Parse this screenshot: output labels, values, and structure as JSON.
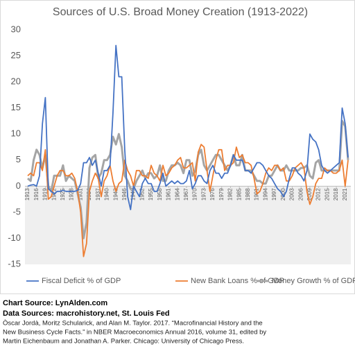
{
  "chart_data": {
    "type": "line",
    "title": "Sources of U.S. Broad Money Creation (1913-2022)",
    "x": [
      1913,
      1914,
      1915,
      1916,
      1917,
      1918,
      1919,
      1920,
      1921,
      1922,
      1923,
      1924,
      1925,
      1926,
      1927,
      1928,
      1929,
      1930,
      1931,
      1932,
      1933,
      1934,
      1935,
      1936,
      1937,
      1938,
      1939,
      1940,
      1941,
      1942,
      1943,
      1944,
      1945,
      1946,
      1947,
      1948,
      1949,
      1950,
      1951,
      1952,
      1953,
      1954,
      1955,
      1956,
      1957,
      1958,
      1959,
      1960,
      1961,
      1962,
      1963,
      1964,
      1965,
      1966,
      1967,
      1968,
      1969,
      1970,
      1971,
      1972,
      1973,
      1974,
      1975,
      1976,
      1977,
      1978,
      1979,
      1980,
      1981,
      1982,
      1983,
      1984,
      1985,
      1986,
      1987,
      1988,
      1989,
      1990,
      1991,
      1992,
      1993,
      1994,
      1995,
      1996,
      1997,
      1998,
      1999,
      2000,
      2001,
      2002,
      2003,
      2004,
      2005,
      2006,
      2007,
      2008,
      2009,
      2010,
      2011,
      2012,
      2013,
      2014,
      2015,
      2016,
      2017,
      2018,
      2019,
      2020,
      2021,
      2022
    ],
    "series": [
      {
        "name": "Fiscal Deficit % of GDP",
        "color": "#4472c4",
        "width": 1.8,
        "values": [
          0,
          0.2,
          0.3,
          0,
          2,
          12,
          17,
          -0.5,
          -1,
          -1.5,
          -1,
          -1,
          -0.8,
          -1,
          -1,
          -1,
          -1,
          -0.8,
          0.5,
          4.5,
          4.5,
          5.5,
          4,
          5,
          2.5,
          0,
          3,
          3,
          4,
          14,
          27,
          21,
          21,
          7,
          -2,
          -4.5,
          0,
          -1,
          -2,
          0.5,
          1.5,
          0.5,
          0.5,
          -1,
          -1,
          0.5,
          2.5,
          0,
          0.5,
          1,
          0.5,
          1,
          0.5,
          0.5,
          1,
          3,
          -0.5,
          0.5,
          2,
          2,
          1,
          0.5,
          3,
          4,
          2.5,
          2.5,
          1.5,
          2.5,
          2.5,
          4,
          6,
          5,
          5,
          5,
          3,
          3,
          2.5,
          3.5,
          4.5,
          4.5,
          4,
          3,
          2,
          1.5,
          0.5,
          -0.5,
          -1,
          -2,
          -1,
          1.5,
          3.5,
          3.5,
          2.5,
          2,
          1,
          3,
          10,
          9,
          8.5,
          7,
          4,
          3,
          2.5,
          3,
          3.5,
          4,
          4.5,
          15,
          12,
          5.5
        ]
      },
      {
        "name": "New Bank Loans % of GDP",
        "color": "#ed7d31",
        "width": 1.8,
        "values": [
          2,
          2.5,
          2,
          4.5,
          4.5,
          3,
          7,
          -2.5,
          -2,
          0,
          2,
          3,
          3,
          2,
          2,
          2.5,
          1.5,
          -1,
          -5,
          -13.5,
          -11,
          -1,
          1,
          2.5,
          1.5,
          -2,
          1,
          2,
          4,
          1,
          -1,
          0.5,
          1,
          5,
          3,
          2,
          0,
          3,
          3,
          2,
          2,
          1.5,
          4,
          2.5,
          2,
          1,
          4,
          2,
          2.5,
          3.5,
          4,
          5,
          5.5,
          3.5,
          3.5,
          4,
          4.5,
          1,
          6.5,
          8,
          7.5,
          3,
          -1,
          2,
          5,
          7,
          7,
          3,
          4,
          4,
          4.5,
          7.5,
          5.5,
          6,
          4.5,
          4.5,
          4,
          1.5,
          -1.5,
          -1,
          0.5,
          2.5,
          3.5,
          3,
          4,
          4,
          3,
          3.5,
          1,
          1,
          2,
          3.5,
          4,
          4.5,
          3.5,
          -1,
          -3.5,
          -2,
          0.5,
          1.5,
          1.5,
          3.5,
          3,
          3,
          2.5,
          2.5,
          3,
          5,
          0,
          5
        ]
      },
      {
        "name": "Money Growth % of GDP",
        "color": "#a5a5a5",
        "width": 3,
        "values": [
          1.5,
          1,
          5,
          7,
          6,
          3.5,
          6,
          0,
          -1,
          2,
          2,
          2,
          4,
          1,
          2,
          1.5,
          1,
          -1.5,
          -4,
          -10,
          -7,
          3.5,
          5.5,
          6,
          1.5,
          2.5,
          5,
          5,
          6,
          9.5,
          8,
          10,
          7.5,
          2,
          1,
          -0.5,
          -0.5,
          1,
          2,
          3,
          1.5,
          2.5,
          2.5,
          1.5,
          2,
          4,
          1,
          1,
          3,
          4,
          4,
          4.5,
          4,
          2.5,
          5,
          5,
          2,
          3,
          6,
          7,
          4,
          3,
          4,
          5,
          6,
          6,
          5,
          4,
          3,
          4,
          6,
          4,
          4,
          6,
          3,
          3,
          3,
          2,
          1,
          1,
          0.5,
          0.5,
          2,
          2,
          3,
          4,
          3,
          3,
          4,
          3,
          3,
          3,
          3,
          3.5,
          3.5,
          4,
          2,
          1.5,
          4.5,
          5,
          3,
          3,
          3,
          3,
          3,
          3,
          3,
          12.5,
          11.5,
          5
        ]
      }
    ],
    "xlim": [
      1913,
      2022
    ],
    "xticks": [
      1913,
      1916,
      1919,
      1922,
      1925,
      1928,
      1931,
      1934,
      1937,
      1940,
      1943,
      1946,
      1949,
      1952,
      1955,
      1958,
      1961,
      1964,
      1967,
      1970,
      1973,
      1976,
      1979,
      1982,
      1985,
      1988,
      1991,
      1994,
      1997,
      2000,
      2003,
      2006,
      2009,
      2012,
      2015,
      2018,
      2021
    ],
    "ylim": [
      -15,
      30
    ],
    "yticks": [
      -15,
      -10,
      -5,
      0,
      5,
      10,
      15,
      20,
      25,
      30
    ],
    "legend": "bottom"
  },
  "footer": {
    "chart_source": "Chart Source: LynAlden.com",
    "data_sources": "Data Sources: macrohistory.net, St. Louis Fed",
    "citation": [
      "Òscar Jordà, Moritz Schularick, and Alan M. Taylor. 2017. “Macrofinancial History and the",
      "New Business Cycle Facts.” in NBER Macroeconomics Annual 2016, volume 31, edited by",
      "Martin Eichenbaum and Jonathan A. Parker. Chicago: University of Chicago Press."
    ]
  }
}
